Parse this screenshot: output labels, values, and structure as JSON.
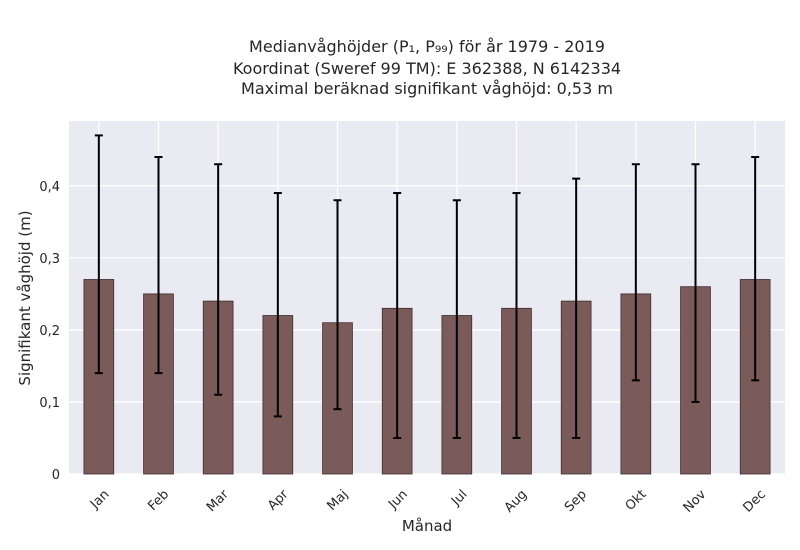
{
  "chart_data": {
    "type": "bar",
    "title_lines": [
      "Medianvåghöjder (P₁, P₉₉) för år 1979 - 2019",
      "Koordinat (Sweref 99 TM): E 362388, N 6142334",
      "Maximal beräknad signifikant våghöjd: 0,53 m"
    ],
    "xlabel": "Månad",
    "ylabel": "Signifikant våghöjd (m)",
    "categories": [
      "Jan",
      "Feb",
      "Mar",
      "Apr",
      "Maj",
      "Jun",
      "Jul",
      "Aug",
      "Sep",
      "Okt",
      "Nov",
      "Dec"
    ],
    "values": [
      0.27,
      0.25,
      0.24,
      0.22,
      0.21,
      0.23,
      0.22,
      0.23,
      0.24,
      0.25,
      0.26,
      0.27
    ],
    "p1": [
      0.14,
      0.14,
      0.11,
      0.08,
      0.09,
      0.05,
      0.05,
      0.05,
      0.05,
      0.13,
      0.1,
      0.13
    ],
    "p99": [
      0.47,
      0.44,
      0.43,
      0.39,
      0.38,
      0.39,
      0.38,
      0.39,
      0.41,
      0.43,
      0.43,
      0.44
    ],
    "ylim": [
      0,
      0.49
    ],
    "yticks": [
      0,
      0.1,
      0.2,
      0.3,
      0.4
    ],
    "ytick_labels": [
      "0",
      "0,1",
      "0,2",
      "0,3",
      "0,4"
    ],
    "grid": true,
    "bar_color": "#7b5a5a",
    "background_color": "#eaeaf2",
    "error_color": "#000000"
  }
}
